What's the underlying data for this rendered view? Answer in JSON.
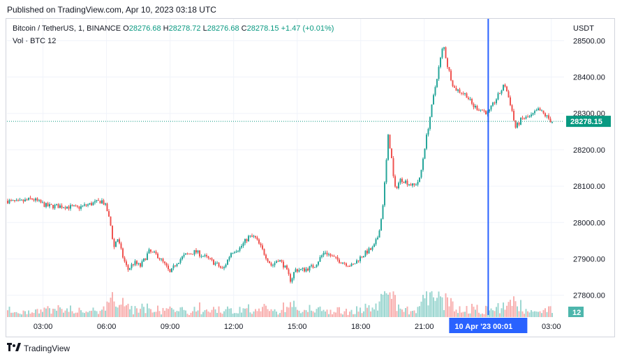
{
  "header": {
    "published": "Published on TradingView.com, Apr 10, 2023 03:18 UTC"
  },
  "legend": {
    "symbol": "Bitcoin / TetherUS, 1, BINANCE",
    "o_label": "O",
    "o_value": "28276.68",
    "h_label": "H",
    "h_value": "28278.72",
    "l_label": "L",
    "l_value": "28276.68",
    "c_label": "C",
    "c_value": "28278.15",
    "change": "+1.47 (+0.01%)",
    "vol_label": "Vol · BTC",
    "vol_value": "12"
  },
  "price_axis": {
    "currency": "USDT",
    "current_price_label": "28278.15",
    "current_volume_label": "12"
  },
  "time_axis": {
    "crosshair_label": "10 Apr '23   00:01"
  },
  "footer": {
    "brand": "TradingView"
  },
  "colors": {
    "up": "#26a69a",
    "down": "#ef5350",
    "crosshair": "#2962ff",
    "grid": "#f0f3fa",
    "price_line": "#089981"
  },
  "chart_data": {
    "type": "candlestick",
    "interval": "1 minute",
    "symbol": "BTCUSDT",
    "x_unit": "hours UTC since Apr 9 00:00 (27 = Apr 10 03:00)",
    "y_ticks": [
      28500,
      28400,
      28300,
      28200,
      28100,
      28000,
      27900,
      27800
    ],
    "y_tick_labels": [
      "28500.00",
      "28400.00",
      "28300.00",
      "28200.00",
      "28100.00",
      "28000.00",
      "27900.00",
      "27800.00"
    ],
    "ylim": [
      27740,
      28560
    ],
    "x_ticks": [
      3,
      6,
      9,
      12,
      15,
      18,
      21,
      27
    ],
    "x_tick_labels": [
      "03:00",
      "06:00",
      "09:00",
      "12:00",
      "15:00",
      "18:00",
      "21:00",
      "03:00"
    ],
    "xlim": [
      1.3,
      27.6
    ],
    "crosshair_x": 24.02,
    "last_price": 28278.15,
    "price_path": [
      [
        1.3,
        28060
      ],
      [
        1.8,
        28055
      ],
      [
        2.5,
        28065
      ],
      [
        3.2,
        28045
      ],
      [
        4.0,
        28045
      ],
      [
        4.6,
        28040
      ],
      [
        5.2,
        28050
      ],
      [
        5.8,
        28060
      ],
      [
        6.0,
        28040
      ],
      [
        6.2,
        27990
      ],
      [
        6.35,
        27930
      ],
      [
        6.5,
        27960
      ],
      [
        6.8,
        27900
      ],
      [
        7.0,
        27870
      ],
      [
        7.3,
        27890
      ],
      [
        7.6,
        27880
      ],
      [
        8.0,
        27920
      ],
      [
        8.4,
        27910
      ],
      [
        8.8,
        27880
      ],
      [
        9.0,
        27860
      ],
      [
        9.3,
        27890
      ],
      [
        9.7,
        27910
      ],
      [
        10.2,
        27920
      ],
      [
        10.8,
        27900
      ],
      [
        11.2,
        27885
      ],
      [
        11.5,
        27870
      ],
      [
        11.9,
        27920
      ],
      [
        12.3,
        27930
      ],
      [
        12.7,
        27960
      ],
      [
        13.0,
        27960
      ],
      [
        13.4,
        27920
      ],
      [
        13.8,
        27880
      ],
      [
        14.1,
        27900
      ],
      [
        14.4,
        27880
      ],
      [
        14.7,
        27840
      ],
      [
        14.9,
        27870
      ],
      [
        15.3,
        27870
      ],
      [
        15.8,
        27880
      ],
      [
        16.3,
        27920
      ],
      [
        16.8,
        27900
      ],
      [
        17.2,
        27890
      ],
      [
        17.6,
        27880
      ],
      [
        17.9,
        27900
      ],
      [
        18.3,
        27920
      ],
      [
        18.6,
        27930
      ],
      [
        18.8,
        27960
      ],
      [
        19.0,
        28020
      ],
      [
        19.15,
        28120
      ],
      [
        19.3,
        28240
      ],
      [
        19.45,
        28180
      ],
      [
        19.6,
        28090
      ],
      [
        19.9,
        28120
      ],
      [
        20.2,
        28110
      ],
      [
        20.5,
        28100
      ],
      [
        20.8,
        28120
      ],
      [
        21.0,
        28200
      ],
      [
        21.3,
        28300
      ],
      [
        21.6,
        28400
      ],
      [
        21.9,
        28490
      ],
      [
        22.1,
        28430
      ],
      [
        22.4,
        28370
      ],
      [
        22.7,
        28360
      ],
      [
        23.0,
        28350
      ],
      [
        23.3,
        28320
      ],
      [
        23.7,
        28310
      ],
      [
        24.02,
        28300
      ],
      [
        24.4,
        28340
      ],
      [
        24.8,
        28380
      ],
      [
        25.1,
        28320
      ],
      [
        25.3,
        28260
      ],
      [
        25.6,
        28285
      ],
      [
        26.0,
        28290
      ],
      [
        26.4,
        28310
      ],
      [
        26.8,
        28290
      ],
      [
        27.0,
        28278
      ]
    ]
  }
}
